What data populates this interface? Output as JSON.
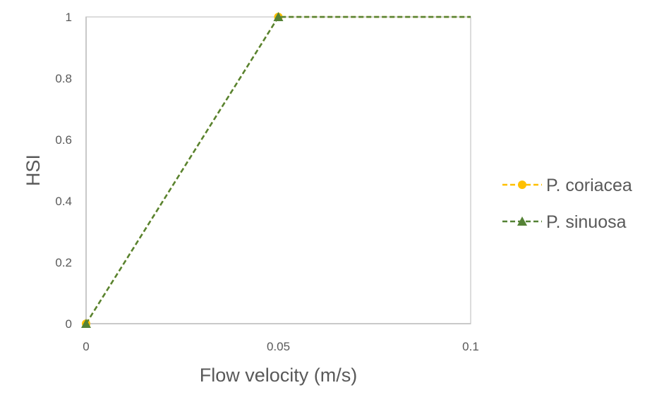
{
  "chart_data": {
    "type": "line",
    "title": "",
    "xlabel": "Flow velocity (m/s)",
    "ylabel": "HSI",
    "xlim": [
      0,
      0.1
    ],
    "ylim": [
      0,
      1
    ],
    "xticks": [
      "0",
      "0.05",
      "0.1"
    ],
    "yticks": [
      "0",
      "0.2",
      "0.4",
      "0.6",
      "0.8",
      "1"
    ],
    "grid": false,
    "legend_position": "right",
    "series": [
      {
        "name": "P. coriacea",
        "color": "#FFC000",
        "marker": "circle",
        "line_style": "dashed",
        "x": [
          0,
          0.05,
          0.1
        ],
        "y": [
          0,
          1,
          1
        ]
      },
      {
        "name": "P. sinuosa",
        "color": "#548235",
        "marker": "triangle",
        "line_style": "dashed",
        "x": [
          0,
          0.05,
          0.1
        ],
        "y": [
          0,
          1,
          1
        ]
      }
    ]
  }
}
